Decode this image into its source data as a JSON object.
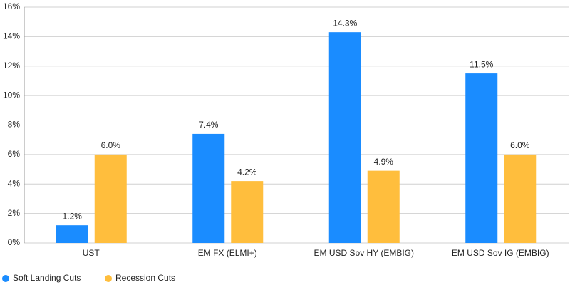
{
  "chart_data": {
    "type": "bar",
    "categories": [
      "UST",
      "EM FX (ELMI+)",
      "EM USD Sov HY (EMBIG)",
      "EM USD Sov IG (EMBIG)"
    ],
    "series": [
      {
        "name": "Soft Landing Cuts",
        "color": "#1a8cff",
        "values": [
          1.2,
          7.4,
          14.3,
          11.5
        ],
        "value_labels": [
          "1.2%",
          "7.4%",
          "14.3%",
          "11.5%"
        ]
      },
      {
        "name": "Recession Cuts",
        "color": "#ffbe3d",
        "values": [
          6.0,
          4.2,
          4.9,
          6.0
        ],
        "value_labels": [
          "6.0%",
          "4.2%",
          "4.9%",
          "6.0%"
        ]
      }
    ],
    "ylim": [
      0,
      16
    ],
    "yticks": [
      {
        "value": 0,
        "label": "0%"
      },
      {
        "value": 2,
        "label": "2%"
      },
      {
        "value": 4,
        "label": "4%"
      },
      {
        "value": 6,
        "label": "6%"
      },
      {
        "value": 8,
        "label": "8%"
      },
      {
        "value": 10,
        "label": "10%"
      },
      {
        "value": 12,
        "label": "12%"
      },
      {
        "value": 14,
        "label": "14%"
      },
      {
        "value": 16,
        "label": "16%"
      }
    ],
    "grid": true
  }
}
